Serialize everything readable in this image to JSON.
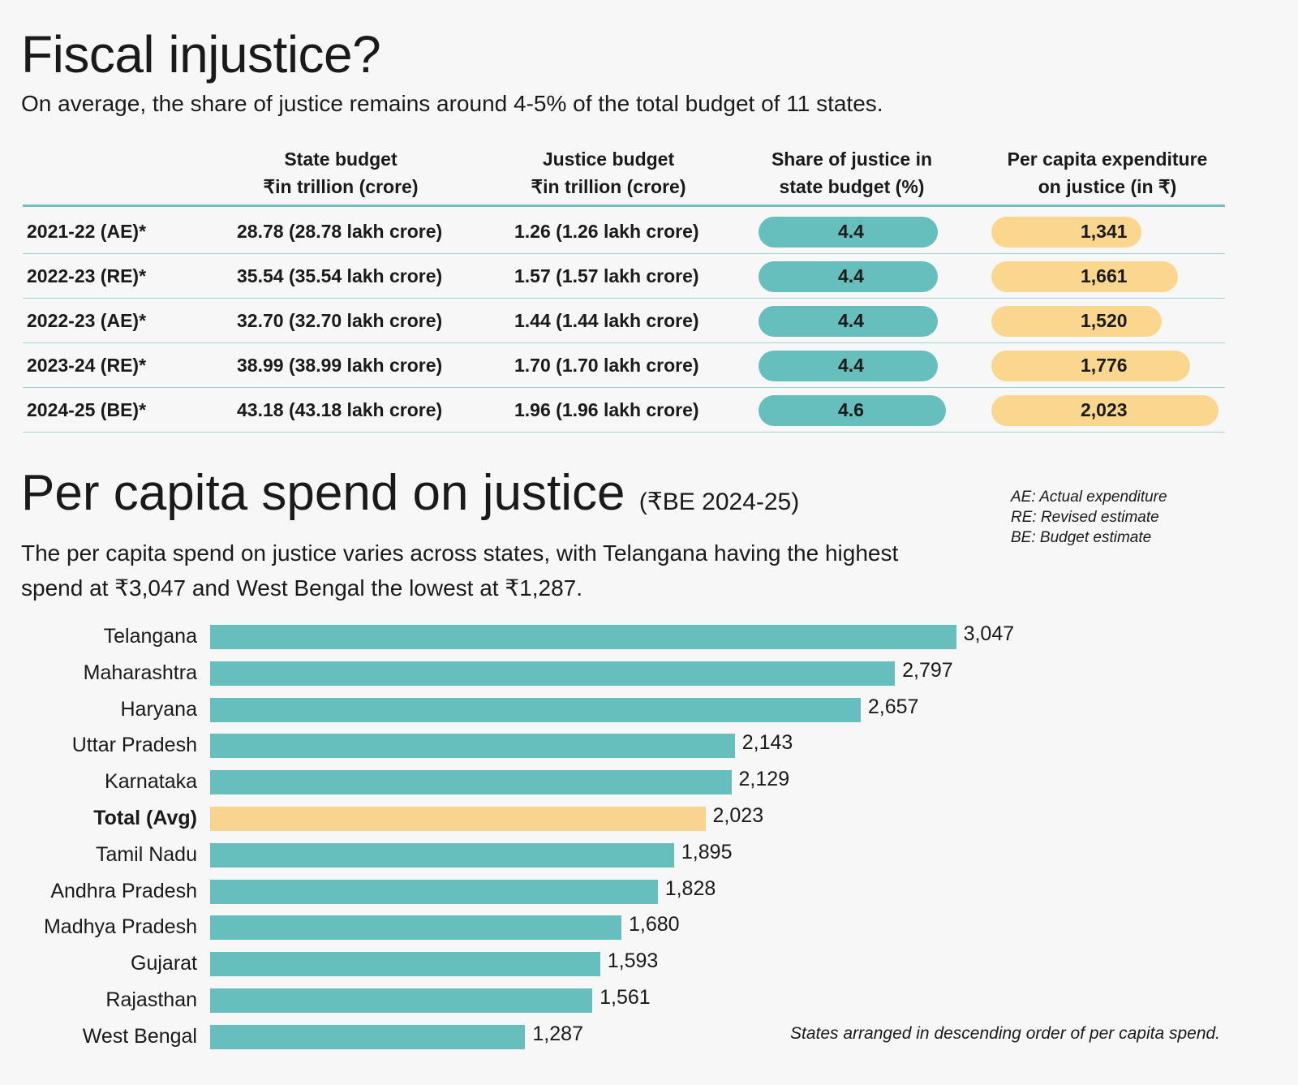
{
  "title": "Fiscal injustice?",
  "subtitle": "On average, the share of justice remains around 4-5% of the total budget of 11 states.",
  "table": {
    "headers": [
      {
        "line1": "State budget",
        "line2": "₹in trillion (crore)"
      },
      {
        "line1": "Justice budget",
        "line2": "₹in trillion (crore)"
      },
      {
        "line1": "Share of justice in",
        "line2": "state budget (%)"
      },
      {
        "line1": "Per capita expenditure",
        "line2": "on justice (in ₹)"
      }
    ],
    "rows": [
      {
        "year": "2021-22 (AE)*",
        "state_budget": "28.78 (28.78 lakh crore)",
        "justice_budget": "1.26 (1.26 lakh crore)",
        "share": "4.4",
        "share_value": 4.4,
        "per_capita": "1,341",
        "per_capita_value": 1341
      },
      {
        "year": "2022-23 (RE)*",
        "state_budget": "35.54 (35.54 lakh crore)",
        "justice_budget": "1.57 (1.57 lakh crore)",
        "share": "4.4",
        "share_value": 4.4,
        "per_capita": "1,661",
        "per_capita_value": 1661
      },
      {
        "year": "2022-23 (AE)*",
        "state_budget": "32.70 (32.70 lakh crore)",
        "justice_budget": "1.44 (1.44 lakh crore)",
        "share": "4.4",
        "share_value": 4.4,
        "per_capita": "1,520",
        "per_capita_value": 1520
      },
      {
        "year": "2023-24 (RE)*",
        "state_budget": "38.99 (38.99 lakh crore)",
        "justice_budget": "1.70 (1.70 lakh crore)",
        "share": "4.4",
        "share_value": 4.4,
        "per_capita": "1,776",
        "per_capita_value": 1776
      },
      {
        "year": "2024-25 (BE)*",
        "state_budget": "43.18 (43.18 lakh crore)",
        "justice_budget": "1.96 (1.96 lakh crore)",
        "share": "4.6",
        "share_value": 4.6,
        "per_capita": "2,023",
        "per_capita_value": 2023
      }
    ]
  },
  "section2": {
    "title": "Per capita spend on justice",
    "title_paren": "(₹BE 2024-25)",
    "subtitle": "The per capita spend on justice varies across states, with Telangana having the highest spend at ₹3,047 and West Bengal the lowest at ₹1,287.",
    "abbreviations": [
      "AE: Actual expenditure",
      "RE: Revised estimate",
      "BE: Budget estimate"
    ],
    "footnote": "States arranged in descending order of per capita spend."
  },
  "colors": {
    "teal": "#66bfbc",
    "gold": "#f8d58e"
  },
  "chart_data": {
    "type": "bar",
    "orientation": "horizontal",
    "categories": [
      "Telangana",
      "Maharashtra",
      "Haryana",
      "Uttar Pradesh",
      "Karnataka",
      "Total (Avg)",
      "Tamil Nadu",
      "Andhra Pradesh",
      "Madhya Pradesh",
      "Gujarat",
      "Rajasthan",
      "West Bengal"
    ],
    "values": [
      3047,
      2797,
      2657,
      2143,
      2129,
      2023,
      1895,
      1828,
      1680,
      1593,
      1561,
      1287
    ],
    "value_labels": [
      "3,047",
      "2,797",
      "2,657",
      "2,143",
      "2,129",
      "2,023",
      "1,895",
      "1,828",
      "1,680",
      "1,593",
      "1,561",
      "1,287"
    ],
    "highlight": "Total (Avg)"
  }
}
